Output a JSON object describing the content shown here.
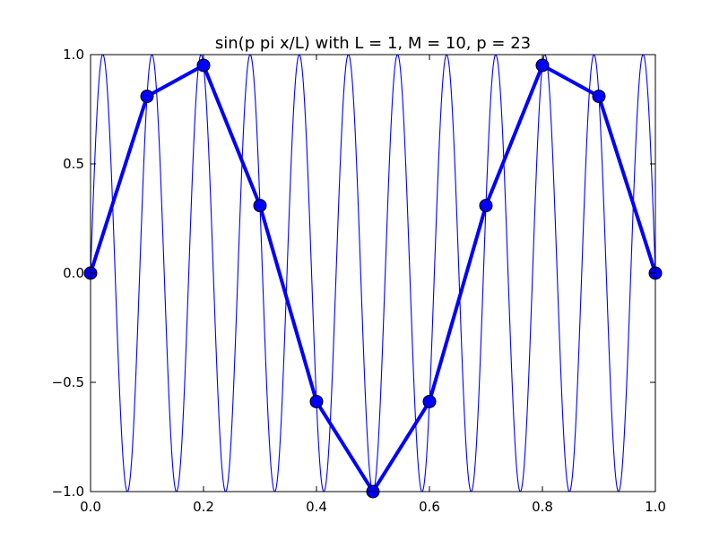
{
  "chart_data": {
    "type": "line",
    "title": "sin(p pi x/L) with L = 1, M = 10, p = 23",
    "xlabel": "",
    "ylabel": "",
    "xlim": [
      0.0,
      1.0
    ],
    "ylim": [
      -1.0,
      1.0
    ],
    "x_ticks": [
      0.0,
      0.2,
      0.4,
      0.6,
      0.8,
      1.0
    ],
    "x_tick_labels": [
      "0.0",
      "0.2",
      "0.4",
      "0.6",
      "0.8",
      "1.0"
    ],
    "y_ticks": [
      -1.0,
      -0.5,
      0.0,
      0.5,
      1.0
    ],
    "y_tick_labels": [
      "−1.0",
      "−0.5",
      "0.0",
      "0.5",
      "1.0"
    ],
    "grid": false,
    "legend": "none",
    "continuous_curve": {
      "function": "sin(p pi x/L)",
      "L": 1,
      "p": 23,
      "color": "#0000ff"
    },
    "series": [
      {
        "color": "#0000ff",
        "marker": "circle",
        "x": [
          0.0,
          0.1,
          0.2,
          0.3,
          0.4,
          0.5,
          0.6,
          0.7,
          0.8,
          0.9,
          1.0
        ],
        "y": [
          0.0,
          0.809,
          0.951,
          0.309,
          -0.588,
          -1.0,
          -0.588,
          0.309,
          0.951,
          0.809,
          0.0
        ]
      }
    ]
  }
}
